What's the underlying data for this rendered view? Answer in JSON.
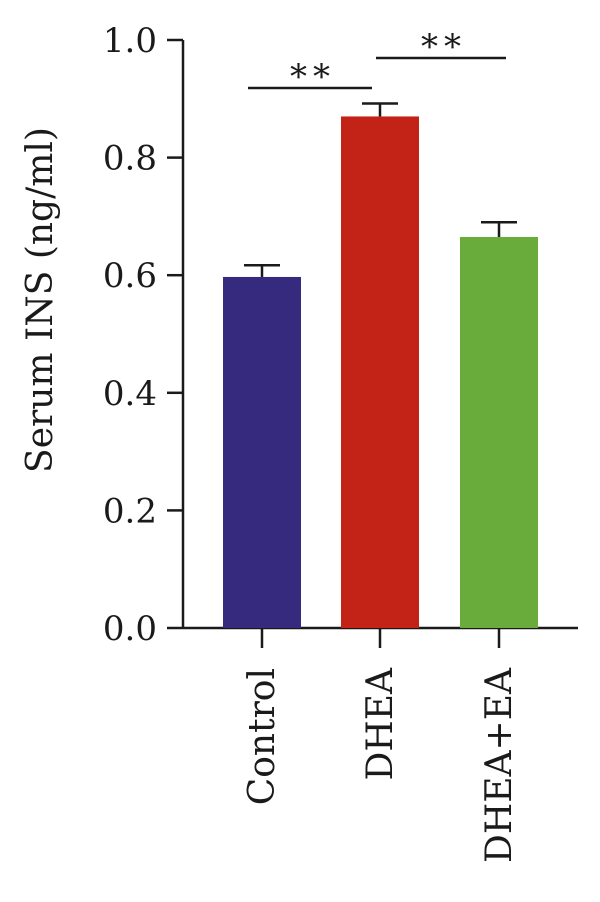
{
  "chart_data": {
    "type": "bar",
    "categories": [
      "Control",
      "DHEA",
      "DHEA+EA"
    ],
    "values": [
      0.597,
      0.87,
      0.665
    ],
    "errors": [
      0.02,
      0.022,
      0.025
    ],
    "colors": [
      "#362a7f",
      "#c22316",
      "#6aac3c"
    ],
    "ylabel": "Serum INS (ng/ml)",
    "ylim": [
      0,
      1.0
    ],
    "yticks": [
      0.0,
      0.2,
      0.4,
      0.6,
      0.8,
      1.0
    ],
    "ytick_labels": [
      "0.0",
      "0.2",
      "0.4",
      "0.6",
      "0.8",
      "1.0"
    ],
    "significance": [
      {
        "from": "Control",
        "to": "DHEA",
        "label": "**"
      },
      {
        "from": "DHEA",
        "to": "DHEA+EA",
        "label": "**"
      }
    ]
  }
}
